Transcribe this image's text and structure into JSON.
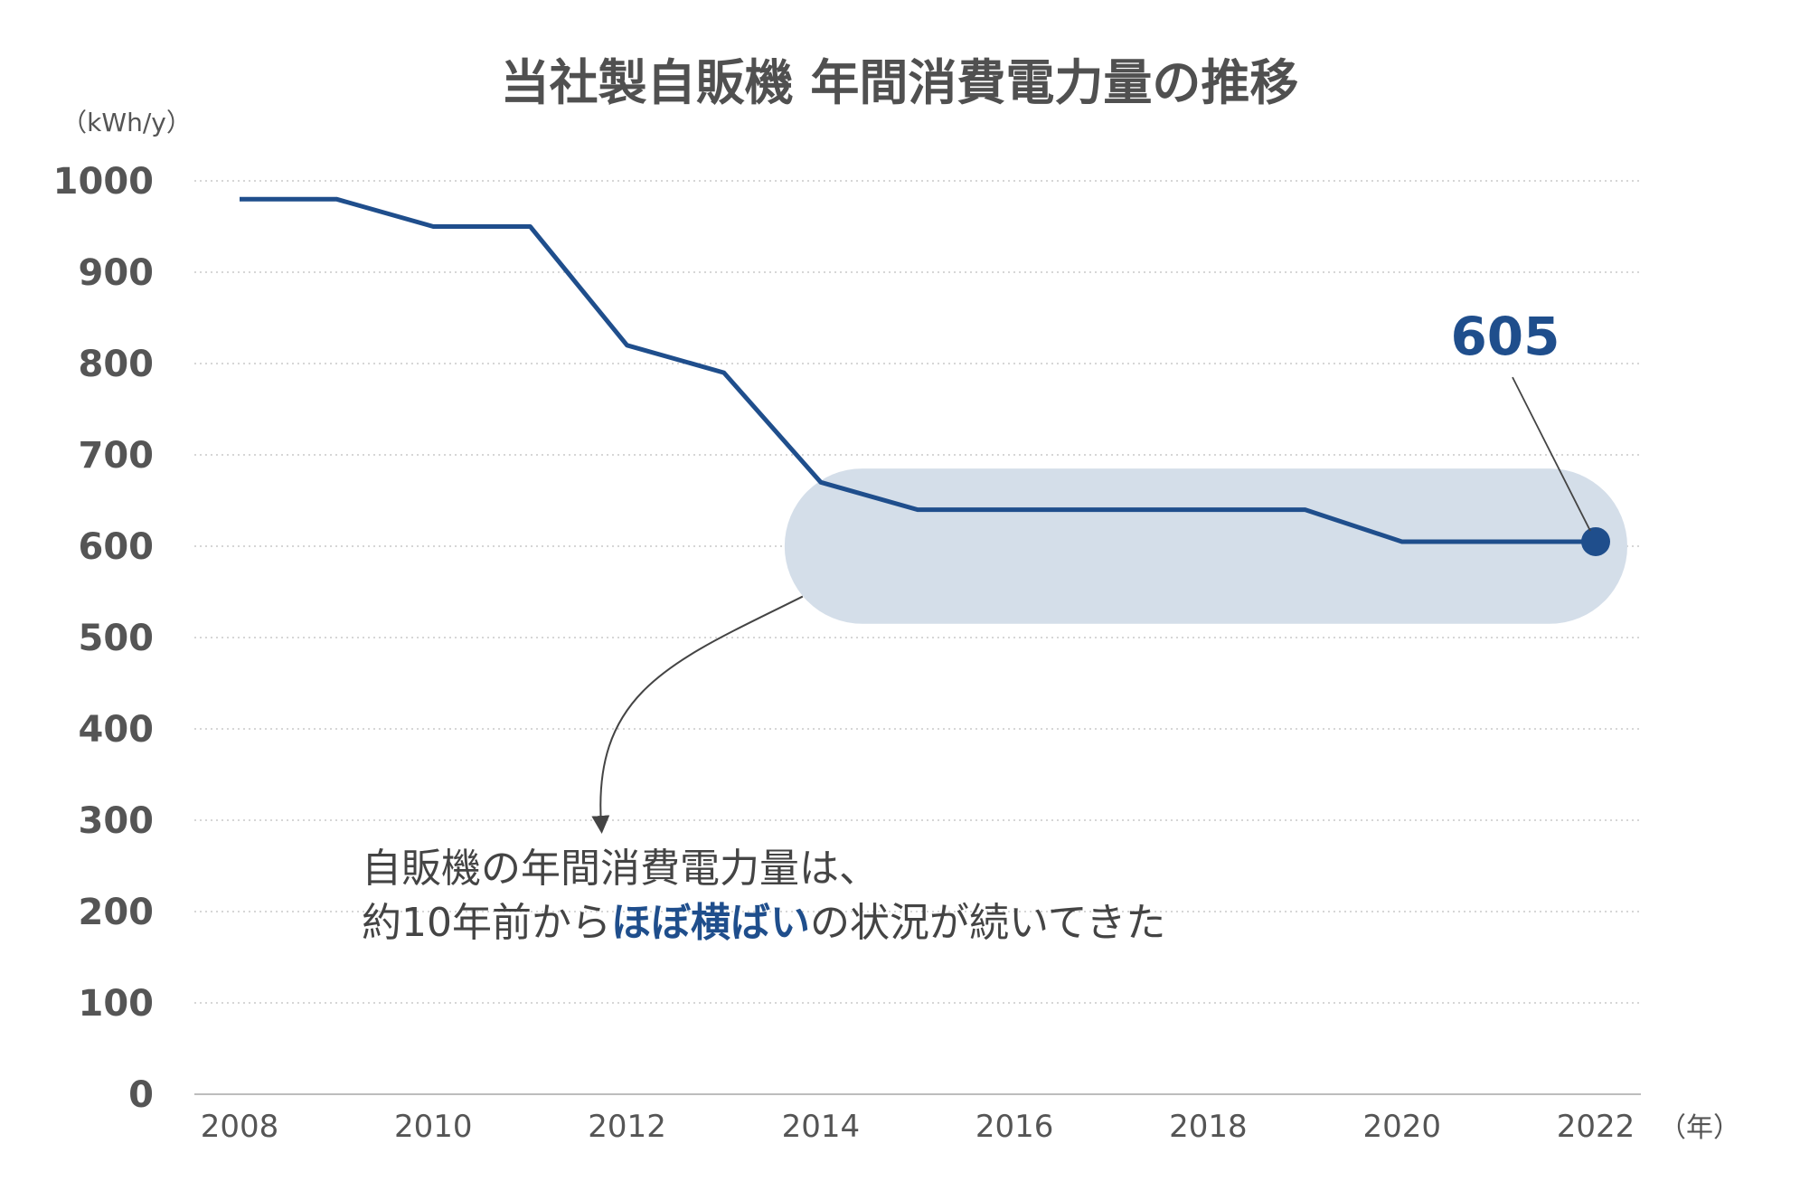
{
  "colors": {
    "line": "#1f4e8c",
    "highlight_band": "#d4dee9",
    "grid": "#c8c8c8",
    "axis": "#bdbdbd",
    "text": "#505050",
    "accent": "#1f4e8c"
  },
  "chart_data": {
    "type": "line",
    "title": "当社製自販機 年間消費電力量の推移",
    "ylabel": "（kWh/y）",
    "xlabel": "（年）",
    "ylim": [
      0,
      1000
    ],
    "yticks": [
      "0",
      "100",
      "200",
      "300",
      "400",
      "500",
      "600",
      "700",
      "800",
      "900",
      "1000"
    ],
    "xticks": [
      "2008",
      "2010",
      "2012",
      "2014",
      "2016",
      "2018",
      "2020",
      "2022"
    ],
    "grid": true,
    "series": [
      {
        "x": [
          2008,
          2009,
          2010,
          2011,
          2012,
          2013,
          2014,
          2015,
          2016,
          2017,
          2018,
          2019,
          2020,
          2021,
          2022
        ],
        "values": [
          980,
          980,
          950,
          950,
          820,
          790,
          670,
          640,
          640,
          640,
          640,
          640,
          605,
          605,
          605
        ]
      }
    ],
    "annotations": {
      "end_value_label": "605",
      "highlight_range": {
        "x_from": 2014,
        "x_to": 2022,
        "y_center": 605
      },
      "note_line1": "自販機の年間消費電力量は、",
      "note_line2_prefix": "約10年前から",
      "note_line2_highlight": "ほぼ横ばい",
      "note_line2_suffix": "の状況が続いてきた"
    }
  }
}
